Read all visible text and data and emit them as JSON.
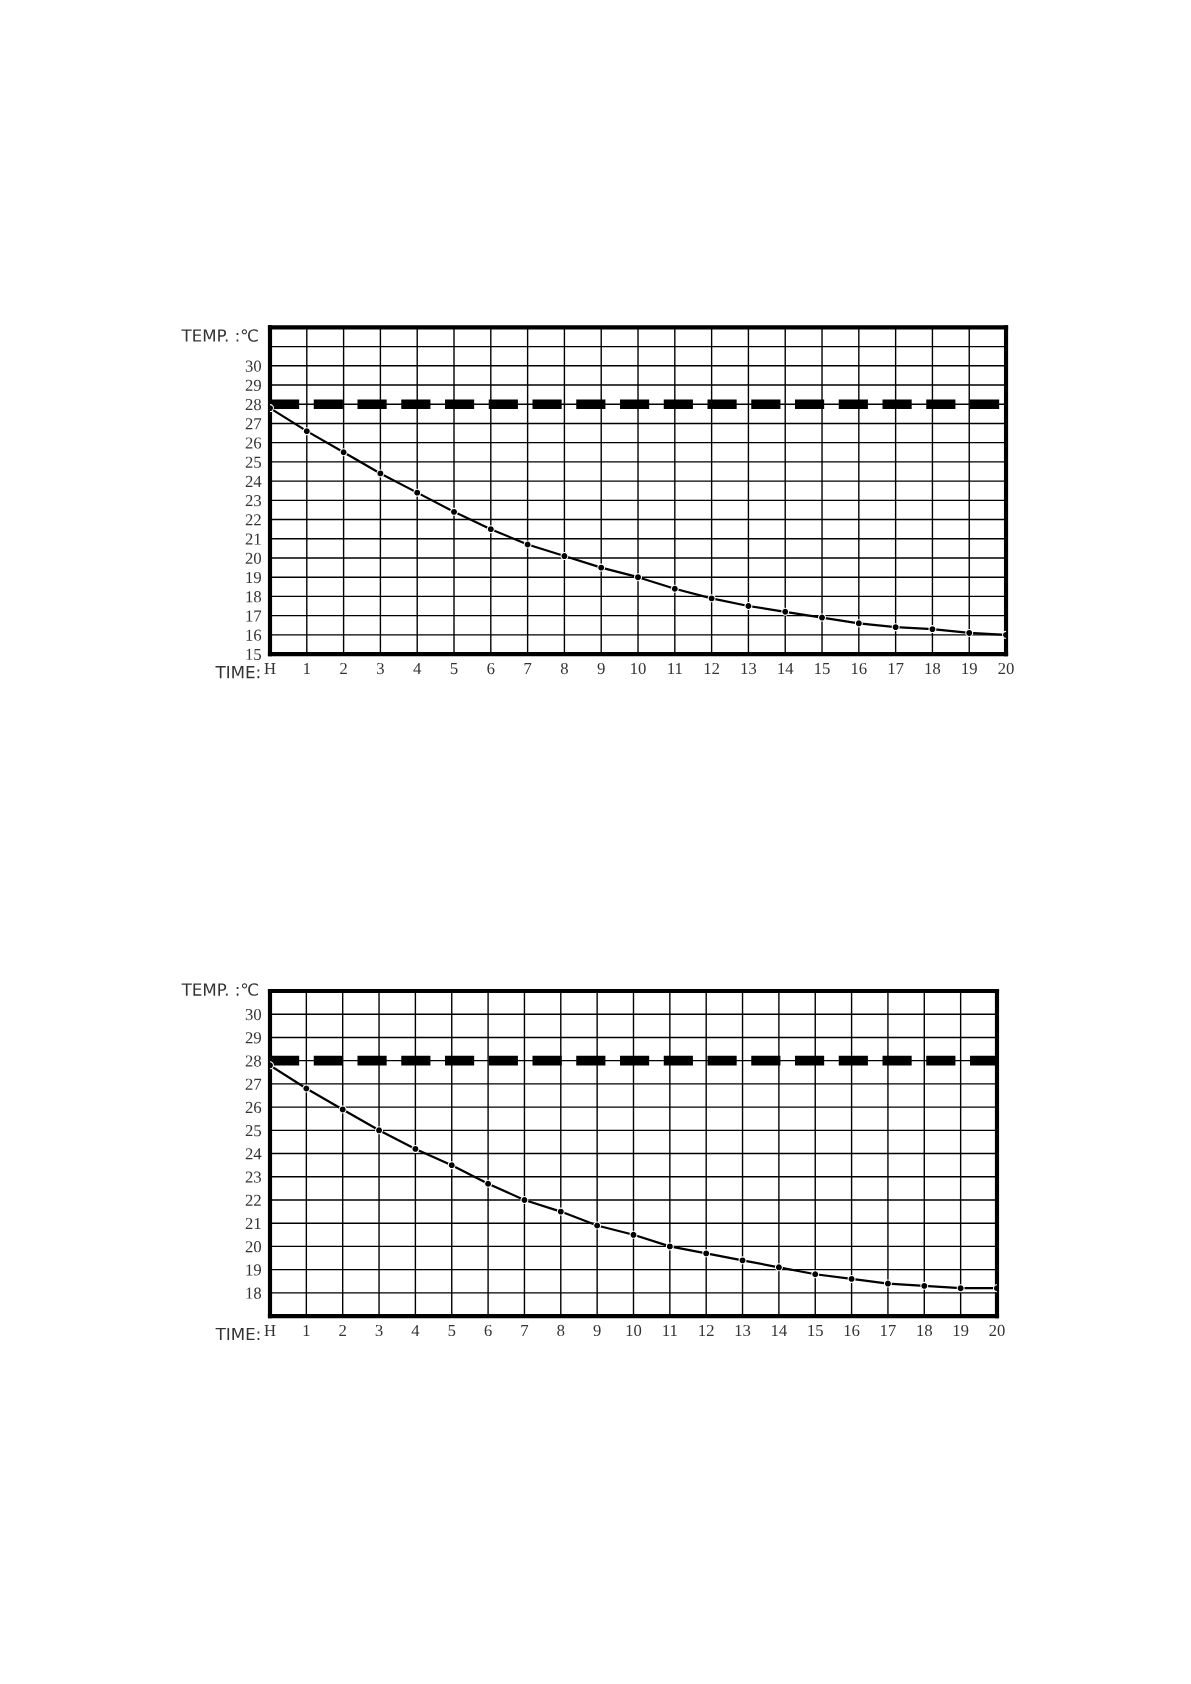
{
  "chart_data": [
    {
      "type": "line",
      "xlabel": "TIME:",
      "ylabel": "TEMP. :℃",
      "x": [
        0,
        1,
        2,
        3,
        4,
        5,
        6,
        7,
        8,
        9,
        10,
        11,
        12,
        13,
        14,
        15,
        16,
        17,
        18,
        19,
        20
      ],
      "series": [
        {
          "color": "#000000",
          "values": [
            27.8,
            26.6,
            25.5,
            24.4,
            23.4,
            22.4,
            21.5,
            20.7,
            20.1,
            19.5,
            19.0,
            18.4,
            17.9,
            17.5,
            17.2,
            16.9,
            16.6,
            16.4,
            16.3,
            16.1,
            16.0
          ]
        }
      ],
      "xlim": [
        0,
        20
      ],
      "ylim": [
        15,
        32
      ],
      "xticks": [
        {
          "value": 0,
          "label": "H"
        },
        1,
        2,
        3,
        4,
        5,
        6,
        7,
        8,
        9,
        10,
        11,
        12,
        13,
        14,
        15,
        16,
        17,
        18,
        19,
        20
      ],
      "yticks": [
        15,
        16,
        17,
        18,
        19,
        20,
        21,
        22,
        23,
        24,
        25,
        26,
        27,
        28,
        29,
        30,
        {
          "value": 31,
          "label": null
        }
      ],
      "ref_lines": [
        {
          "axis": "y",
          "value": 28,
          "color": "#000000",
          "line_style": "dashed"
        }
      ],
      "grid": true,
      "marker": "circle",
      "line_style": "solid"
    },
    {
      "type": "line",
      "xlabel": "TIME:",
      "ylabel": "TEMP. :℃",
      "x": [
        0,
        1,
        2,
        3,
        4,
        5,
        6,
        7,
        8,
        9,
        10,
        11,
        12,
        13,
        14,
        15,
        16,
        17,
        18,
        19,
        20
      ],
      "series": [
        {
          "color": "#000000",
          "values": [
            27.8,
            26.8,
            25.9,
            25.0,
            24.2,
            23.5,
            22.7,
            22.0,
            21.5,
            20.9,
            20.5,
            20.0,
            19.7,
            19.4,
            19.1,
            18.8,
            18.6,
            18.4,
            18.3,
            18.2,
            18.2
          ]
        }
      ],
      "xlim": [
        0,
        20
      ],
      "ylim": [
        17,
        31
      ],
      "xticks": [
        {
          "value": 0,
          "label": "H"
        },
        1,
        2,
        3,
        4,
        5,
        6,
        7,
        8,
        9,
        10,
        11,
        12,
        13,
        14,
        15,
        16,
        17,
        18,
        19,
        20
      ],
      "yticks": [
        18,
        19,
        20,
        21,
        22,
        23,
        24,
        25,
        26,
        27,
        28,
        29,
        30
      ],
      "ref_lines": [
        {
          "axis": "y",
          "value": 28,
          "color": "#000000",
          "line_style": "dashed"
        }
      ],
      "grid": true,
      "marker": "circle",
      "line_style": "solid"
    }
  ]
}
